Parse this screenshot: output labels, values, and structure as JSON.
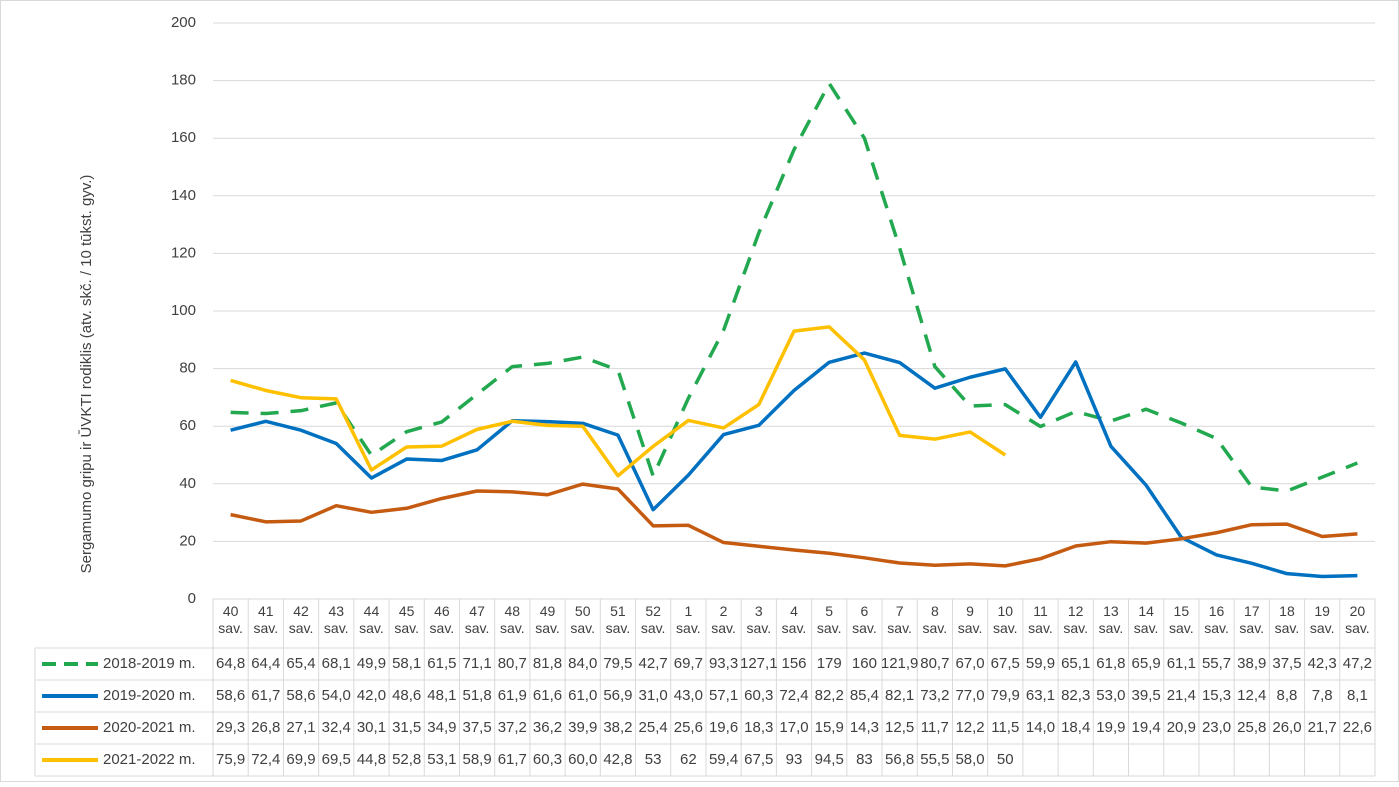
{
  "chart_data": {
    "type": "line",
    "y_label": "Sergamumo gripu ir ŪVKTI rodiklis (atv. skč. / 10 tūkst. gyv.)",
    "categories": [
      "40 sav.",
      "41 sav.",
      "42 sav.",
      "43 sav.",
      "44 sav.",
      "45 sav.",
      "46 sav.",
      "47 sav.",
      "48 sav.",
      "49 sav.",
      "50 sav.",
      "51 sav.",
      "52 sav.",
      "1 sav.",
      "2 sav.",
      "3 sav.",
      "4 sav.",
      "5 sav.",
      "6 sav.",
      "7 sav.",
      "8 sav.",
      "9 sav.",
      "10 sav.",
      "11 sav.",
      "12 sav.",
      "13 sav.",
      "14 sav.",
      "15 sav.",
      "16 sav.",
      "17 sav.",
      "18 sav.",
      "19 sav.",
      "20 sav."
    ],
    "series": [
      {
        "name": "2018-2019 m.",
        "color": "#22a84f",
        "dashed": true,
        "values": [
          64.8,
          64.4,
          65.4,
          68.1,
          49.9,
          58.1,
          61.5,
          71.1,
          80.7,
          81.8,
          84.0,
          79.5,
          42.7,
          69.7,
          93.3,
          127.1,
          156,
          179,
          160,
          121.9,
          80.7,
          67.0,
          67.5,
          59.9,
          65.1,
          61.8,
          65.9,
          61.1,
          55.7,
          38.9,
          37.5,
          42.3,
          47.2
        ],
        "value_labels": [
          "64,8",
          "64,4",
          "65,4",
          "68,1",
          "49,9",
          "58,1",
          "61,5",
          "71,1",
          "80,7",
          "81,8",
          "84,0",
          "79,5",
          "42,7",
          "69,7",
          "93,3",
          "127,1",
          "156",
          "179",
          "160",
          "121,9",
          "80,7",
          "67,0",
          "67,5",
          "59,9",
          "65,1",
          "61,8",
          "65,9",
          "61,1",
          "55,7",
          "38,9",
          "37,5",
          "42,3",
          "47,2"
        ]
      },
      {
        "name": "2019-2020 m.",
        "color": "#0070c0",
        "dashed": false,
        "values": [
          58.6,
          61.7,
          58.6,
          54.0,
          42.0,
          48.6,
          48.1,
          51.8,
          61.9,
          61.6,
          61.0,
          56.9,
          31.0,
          43.0,
          57.1,
          60.3,
          72.4,
          82.2,
          85.4,
          82.1,
          73.2,
          77.0,
          79.9,
          63.1,
          82.3,
          53.0,
          39.5,
          21.4,
          15.3,
          12.4,
          8.8,
          7.8,
          8.1
        ],
        "value_labels": [
          "58,6",
          "61,7",
          "58,6",
          "54,0",
          "42,0",
          "48,6",
          "48,1",
          "51,8",
          "61,9",
          "61,6",
          "61,0",
          "56,9",
          "31,0",
          "43,0",
          "57,1",
          "60,3",
          "72,4",
          "82,2",
          "85,4",
          "82,1",
          "73,2",
          "77,0",
          "79,9",
          "63,1",
          "82,3",
          "53,0",
          "39,5",
          "21,4",
          "15,3",
          "12,4",
          "8,8",
          "7,8",
          "8,1"
        ]
      },
      {
        "name": "2020-2021 m.",
        "color": "#c55a11",
        "dashed": false,
        "values": [
          29.3,
          26.8,
          27.1,
          32.4,
          30.1,
          31.5,
          34.9,
          37.5,
          37.2,
          36.2,
          39.9,
          38.2,
          25.4,
          25.6,
          19.6,
          18.3,
          17.0,
          15.9,
          14.3,
          12.5,
          11.7,
          12.2,
          11.5,
          14.0,
          18.4,
          19.9,
          19.4,
          20.9,
          23.0,
          25.8,
          26.0,
          21.7,
          22.6
        ],
        "value_labels": [
          "29,3",
          "26,8",
          "27,1",
          "32,4",
          "30,1",
          "31,5",
          "34,9",
          "37,5",
          "37,2",
          "36,2",
          "39,9",
          "38,2",
          "25,4",
          "25,6",
          "19,6",
          "18,3",
          "17,0",
          "15,9",
          "14,3",
          "12,5",
          "11,7",
          "12,2",
          "11,5",
          "14,0",
          "18,4",
          "19,9",
          "19,4",
          "20,9",
          "23,0",
          "25,8",
          "26,0",
          "21,7",
          "22,6"
        ]
      },
      {
        "name": "2021-2022 m.",
        "color": "#ffc000",
        "dashed": false,
        "values": [
          75.9,
          72.4,
          69.9,
          69.5,
          44.8,
          52.8,
          53.1,
          58.9,
          61.7,
          60.3,
          60.0,
          42.8,
          53,
          62,
          59.4,
          67.5,
          93,
          94.5,
          83,
          56.8,
          55.5,
          58.0,
          50,
          null,
          null,
          null,
          null,
          null,
          null,
          null,
          null,
          null,
          null
        ],
        "value_labels": [
          "75,9",
          "72,4",
          "69,9",
          "69,5",
          "44,8",
          "52,8",
          "53,1",
          "58,9",
          "61,7",
          "60,3",
          "60,0",
          "42,8",
          "53",
          "62",
          "59,4",
          "67,5",
          "93",
          "94,5",
          "83",
          "56,8",
          "55,5",
          "58,0",
          "50",
          null,
          null,
          null,
          null,
          null,
          null,
          null,
          null,
          null,
          null
        ]
      }
    ],
    "ylim": [
      0,
      200
    ],
    "yticks": [
      0,
      20,
      40,
      60,
      80,
      100,
      120,
      140,
      160,
      180,
      200
    ],
    "grid": true
  }
}
